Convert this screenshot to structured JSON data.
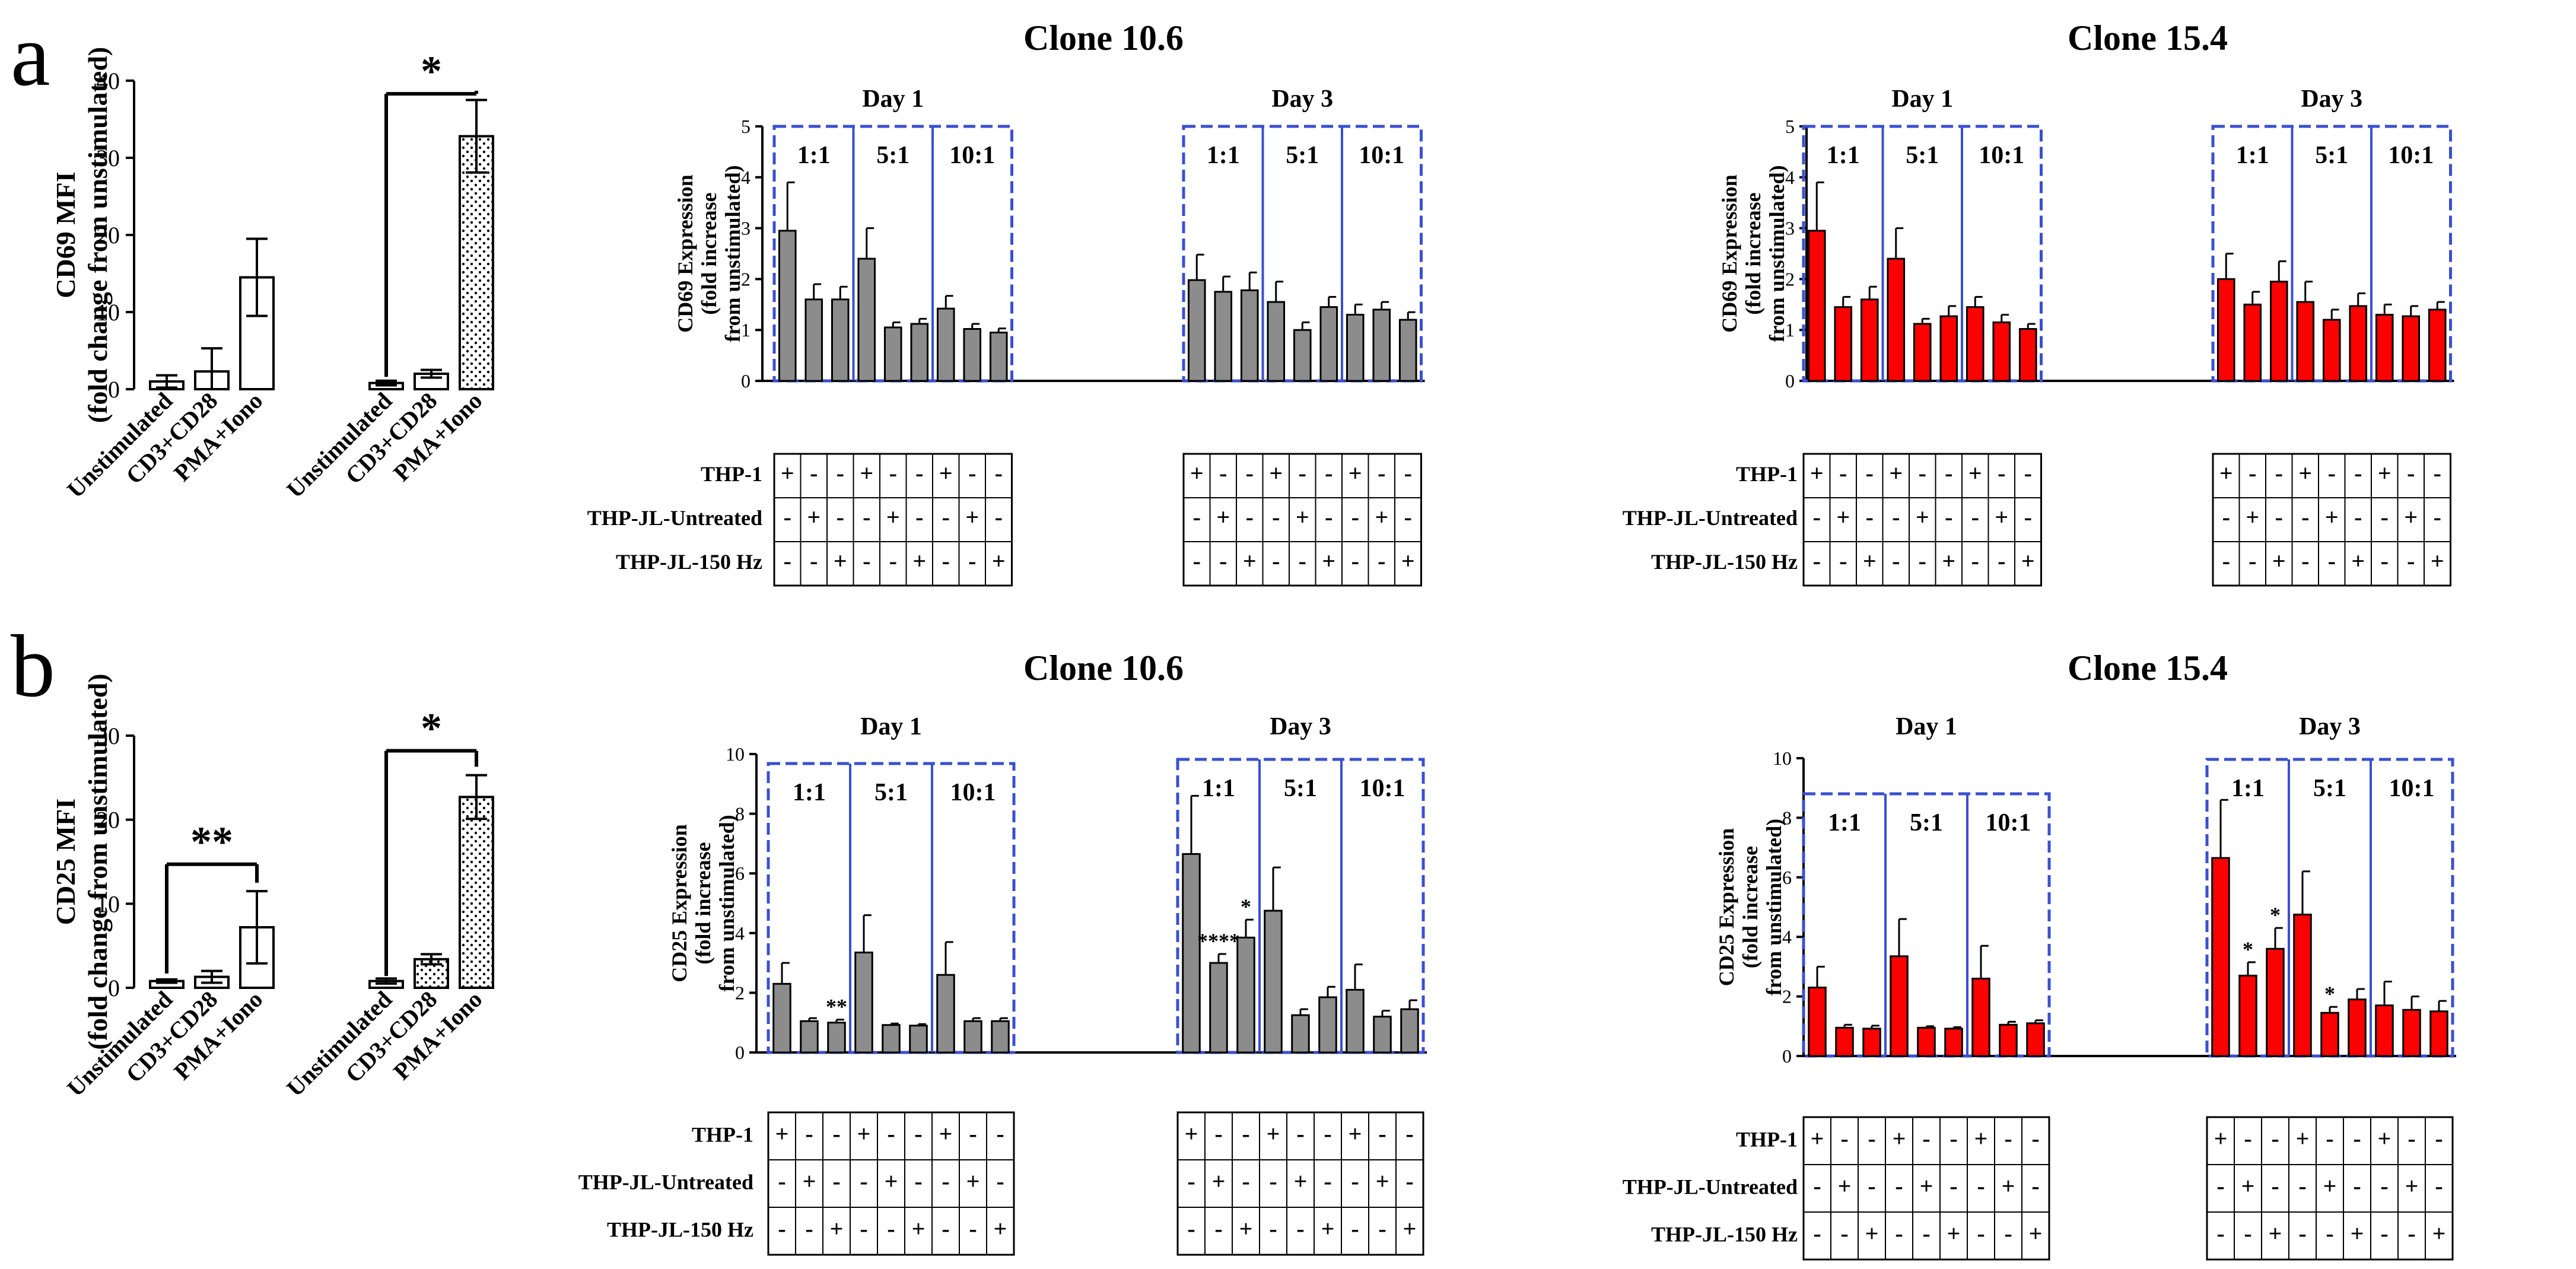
{
  "panels": {
    "a": "a",
    "b": "b"
  },
  "colors": {
    "gray": "#8c8c8c",
    "red": "#ff0000",
    "box": "#3a4fd0",
    "axis": "#000000"
  },
  "rows": {
    "a": {
      "left": {
        "ylabel_lines": [
          "CD69 MFI",
          "(fold change from unstimulated)"
        ],
        "ylim": [
          0,
          40
        ],
        "ticks": [
          0,
          10,
          20,
          30,
          40
        ],
        "categories": [
          "Unstimulated",
          "CD3+CD28",
          "PMA+Iono",
          "Unstimulated",
          "CD3+CD28",
          "PMA+Iono"
        ],
        "values": [
          1,
          2.3,
          14.5,
          0.8,
          2,
          32.8
        ],
        "errors": [
          0.8,
          3,
          5,
          0.3,
          0.5,
          4.7
        ],
        "patterns": [
          "open",
          "open",
          "open",
          "open",
          "open",
          "dots"
        ],
        "brackets": [
          {
            "from": 3,
            "to": 5,
            "label": "*"
          }
        ]
      },
      "clones": [
        {
          "title": "Clone 10.6",
          "color": "gray",
          "ylabel_lines": [
            "CD69 Expression",
            "(fold increase",
            "from unstimulated)"
          ],
          "ylim": [
            0,
            5
          ],
          "ticks": [
            0,
            1,
            2,
            3,
            4,
            5
          ],
          "days": [
            "Day 1",
            "Day 3"
          ],
          "ratios": [
            "1:1",
            "5:1",
            "10:1"
          ],
          "values": [
            [
              2.95,
              1.6,
              1.6,
              2.4,
              1.05,
              1.12,
              1.42,
              1.02,
              0.95
            ],
            [
              1.98,
              1.75,
              1.78,
              1.55,
              1.0,
              1.45,
              1.3,
              1.4,
              1.2
            ]
          ],
          "errors": [
            [
              0.95,
              0.3,
              0.25,
              0.6,
              0.1,
              0.1,
              0.25,
              0.1,
              0.08
            ],
            [
              0.5,
              0.3,
              0.35,
              0.4,
              0.15,
              0.2,
              0.2,
              0.15,
              0.15
            ]
          ],
          "stars": [
            [
              "",
              "",
              "",
              "",
              "",
              "",
              "",
              "",
              ""
            ],
            [
              "",
              "",
              "",
              "",
              "",
              "",
              "",
              "",
              ""
            ]
          ]
        },
        {
          "title": "Clone 15.4",
          "color": "red",
          "ylabel_lines": [
            "CD69 Expression",
            "(fold increase",
            "from unstimulated)"
          ],
          "ylim": [
            0,
            5
          ],
          "ticks": [
            0,
            1,
            2,
            3,
            4,
            5
          ],
          "days": [
            "Day 1",
            "Day 3"
          ],
          "ratios": [
            "1:1",
            "5:1",
            "10:1"
          ],
          "values": [
            [
              2.95,
              1.45,
              1.6,
              2.4,
              1.12,
              1.27,
              1.45,
              1.15,
              1.02
            ],
            [
              2.0,
              1.5,
              1.95,
              1.55,
              1.2,
              1.47,
              1.3,
              1.27,
              1.4
            ]
          ],
          "errors": [
            [
              0.95,
              0.2,
              0.25,
              0.6,
              0.1,
              0.2,
              0.2,
              0.15,
              0.1
            ],
            [
              0.5,
              0.25,
              0.4,
              0.4,
              0.2,
              0.25,
              0.2,
              0.2,
              0.15
            ]
          ],
          "stars": [
            [
              "",
              "",
              "",
              "",
              "",
              "",
              "",
              "",
              ""
            ],
            [
              "",
              "",
              "",
              "",
              "",
              "",
              "",
              "",
              ""
            ]
          ]
        }
      ]
    },
    "b": {
      "left": {
        "ylabel_lines": [
          "CD25 MFI",
          "(fold change from unstimulated)"
        ],
        "ylim": [
          0,
          30
        ],
        "ticks": [
          0,
          10,
          20,
          30
        ],
        "categories": [
          "Unstimulated",
          "CD3+CD28",
          "PMA+Iono",
          "Unstimulated",
          "CD3+CD28",
          "PMA+Iono"
        ],
        "values": [
          0.8,
          1.3,
          7.2,
          0.8,
          3.4,
          22.7
        ],
        "errors": [
          0.2,
          0.7,
          4.3,
          0.3,
          0.6,
          2.6
        ],
        "patterns": [
          "open",
          "open",
          "open",
          "open",
          "dots",
          "dots"
        ],
        "brackets": [
          {
            "from": 0,
            "to": 2,
            "label": "**"
          },
          {
            "from": 3,
            "to": 5,
            "label": "*"
          }
        ]
      },
      "clones": [
        {
          "title": "Clone 10.6",
          "color": "gray",
          "ylabel_lines": [
            "CD25 Expression",
            "(fold increase",
            "from unstimulated)"
          ],
          "ylim": [
            0,
            10
          ],
          "ticks": [
            0,
            2,
            4,
            6,
            8,
            10
          ],
          "days": [
            "Day 1",
            "Day 3"
          ],
          "ratios": [
            "1:1",
            "5:1",
            "10:1"
          ],
          "values": [
            [
              2.3,
              1.05,
              1.0,
              3.35,
              0.92,
              0.9,
              2.6,
              1.05,
              1.05
            ],
            [
              6.65,
              3.0,
              3.85,
              4.75,
              1.25,
              1.85,
              2.1,
              1.2,
              1.45
            ]
          ],
          "errors": [
            [
              0.7,
              0.1,
              0.1,
              1.25,
              0.05,
              0.05,
              1.1,
              0.1,
              0.1
            ],
            [
              1.95,
              0.3,
              0.6,
              1.45,
              0.2,
              0.35,
              0.85,
              0.2,
              0.3
            ]
          ],
          "stars": [
            [
              "",
              "",
              "**",
              "",
              "",
              "",
              "",
              "",
              ""
            ],
            [
              "",
              "****",
              "*",
              "",
              "",
              "",
              "",
              "",
              ""
            ]
          ]
        },
        {
          "title": "Clone 15.4",
          "color": "red",
          "ylabel_lines": [
            "CD25 Expression",
            "(fold increase",
            "from unstimulated)"
          ],
          "ylim": [
            0,
            10
          ],
          "ticks": [
            0,
            2,
            4,
            6,
            8,
            10
          ],
          "days": [
            "Day 1",
            "Day 3"
          ],
          "ratios": [
            "1:1",
            "5:1",
            "10:1"
          ],
          "values": [
            [
              2.3,
              0.95,
              0.92,
              3.35,
              0.95,
              0.92,
              2.6,
              1.05,
              1.1
            ],
            [
              6.65,
              2.7,
              3.6,
              4.75,
              1.45,
              1.9,
              1.7,
              1.55,
              1.5
            ]
          ],
          "errors": [
            [
              0.7,
              0.1,
              0.1,
              1.25,
              0.05,
              0.05,
              1.1,
              0.1,
              0.1
            ],
            [
              1.95,
              0.45,
              0.7,
              1.45,
              0.2,
              0.35,
              0.8,
              0.45,
              0.35
            ]
          ],
          "stars": [
            [
              "",
              "",
              "",
              "",
              "",
              "",
              "",
              "",
              ""
            ],
            [
              "",
              "*",
              "*",
              "",
              "*",
              "",
              "",
              "",
              ""
            ]
          ]
        }
      ]
    }
  },
  "table": {
    "row_labels": [
      "THP-1",
      "THP-JL-Untreated",
      "THP-JL-150 Hz"
    ],
    "signs": [
      [
        "+",
        "-",
        "-",
        "+",
        "-",
        "-",
        "+",
        "-",
        "-"
      ],
      [
        "-",
        "+",
        "-",
        "-",
        "+",
        "-",
        "-",
        "+",
        "-"
      ],
      [
        "-",
        "-",
        "+",
        "-",
        "-",
        "+",
        "-",
        "-",
        "+"
      ]
    ]
  },
  "chart_data": [
    {
      "type": "bar",
      "title": "",
      "ylabel": "CD69 MFI (fold change from unstimulated)",
      "ylim": [
        0,
        40
      ],
      "categories": [
        "Unstimulated",
        "CD3+CD28",
        "PMA+Iono",
        "Unstimulated",
        "CD3+CD28",
        "PMA+Iono"
      ],
      "values": [
        1,
        2.3,
        14.5,
        0.8,
        2,
        32.8
      ]
    },
    {
      "type": "bar",
      "title": "Clone 10.6",
      "ylabel": "CD69 Expression (fold increase from unstimulated)",
      "ylim": [
        0,
        5
      ],
      "series": [
        {
          "name": "Day 1",
          "values": [
            2.95,
            1.6,
            1.6,
            2.4,
            1.05,
            1.12,
            1.42,
            1.02,
            0.95
          ]
        },
        {
          "name": "Day 3",
          "values": [
            1.98,
            1.75,
            1.78,
            1.55,
            1.0,
            1.45,
            1.3,
            1.4,
            1.2
          ]
        }
      ]
    },
    {
      "type": "bar",
      "title": "Clone 15.4",
      "ylabel": "CD69 Expression (fold increase from unstimulated)",
      "ylim": [
        0,
        5
      ],
      "series": [
        {
          "name": "Day 1",
          "values": [
            2.95,
            1.45,
            1.6,
            2.4,
            1.12,
            1.27,
            1.45,
            1.15,
            1.02
          ]
        },
        {
          "name": "Day 3",
          "values": [
            2.0,
            1.5,
            1.95,
            1.55,
            1.2,
            1.47,
            1.3,
            1.27,
            1.4
          ]
        }
      ]
    },
    {
      "type": "bar",
      "title": "",
      "ylabel": "CD25 MFI (fold change from unstimulated)",
      "ylim": [
        0,
        30
      ],
      "categories": [
        "Unstimulated",
        "CD3+CD28",
        "PMA+Iono",
        "Unstimulated",
        "CD3+CD28",
        "PMA+Iono"
      ],
      "values": [
        0.8,
        1.3,
        7.2,
        0.8,
        3.4,
        22.7
      ]
    },
    {
      "type": "bar",
      "title": "Clone 10.6",
      "ylabel": "CD25 Expression (fold increase from unstimulated)",
      "ylim": [
        0,
        10
      ],
      "series": [
        {
          "name": "Day 1",
          "values": [
            2.3,
            1.05,
            1.0,
            3.35,
            0.92,
            0.9,
            2.6,
            1.05,
            1.05
          ]
        },
        {
          "name": "Day 3",
          "values": [
            6.65,
            3.0,
            3.85,
            4.75,
            1.25,
            1.85,
            2.1,
            1.2,
            1.45
          ]
        }
      ]
    },
    {
      "type": "bar",
      "title": "Clone 15.4",
      "ylabel": "CD25 Expression (fold increase from unstimulated)",
      "ylim": [
        0,
        10
      ],
      "series": [
        {
          "name": "Day 1",
          "values": [
            2.3,
            0.95,
            0.92,
            3.35,
            0.95,
            0.92,
            2.6,
            1.05,
            1.1
          ]
        },
        {
          "name": "Day 3",
          "values": [
            6.65,
            2.7,
            3.6,
            4.75,
            1.45,
            1.9,
            1.7,
            1.55,
            1.5
          ]
        }
      ]
    }
  ]
}
